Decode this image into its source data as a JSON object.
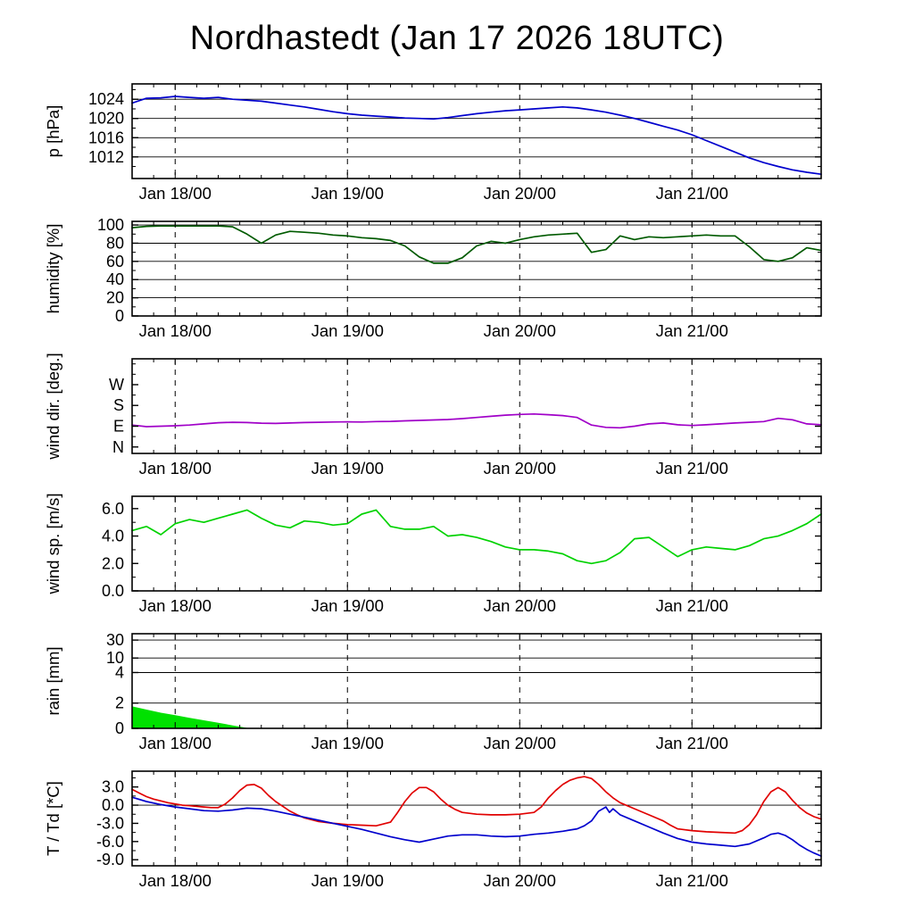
{
  "title": "Nordhastedt (Jan 17 2026 18UTC)",
  "x_axis": {
    "range_hours": [
      0,
      96
    ],
    "start": "Jan 17 2026 18UTC",
    "ticks": [
      {
        "hour": 6,
        "label": "Jan 18/00"
      },
      {
        "hour": 30,
        "label": "Jan 19/00"
      },
      {
        "hour": 54,
        "label": "Jan 20/00"
      },
      {
        "hour": 78,
        "label": "Jan 21/00"
      }
    ]
  },
  "colors": {
    "pressure": "#0000cd",
    "humidity": "#005a00",
    "wind_direction": "#a000c8",
    "wind_speed": "#00d200",
    "rain": "#00e100",
    "temperature": "#e10000",
    "dewpoint": "#0000cd",
    "axis": "#000000",
    "background": "#ffffff"
  },
  "chart_data": [
    {
      "type": "line",
      "name": "pressure",
      "ylabel": "p [hPa]",
      "ylim": [
        1007.5,
        1027.2
      ],
      "yticks": [
        {
          "v": 1012,
          "label": "1012",
          "grid": true
        },
        {
          "v": 1016,
          "label": "1016",
          "grid": true
        },
        {
          "v": 1020,
          "label": "1020",
          "grid": true
        },
        {
          "v": 1024,
          "label": "1024",
          "grid": true
        }
      ],
      "minor_yticks": [
        1010,
        1014,
        1018,
        1022,
        1026
      ],
      "series": [
        {
          "name": "pressure",
          "color": "#0000cd",
          "x": [
            0,
            2,
            4,
            6,
            8,
            10,
            12,
            14,
            16,
            18,
            20,
            22,
            24,
            26,
            28,
            30,
            32,
            34,
            36,
            38,
            40,
            42,
            44,
            46,
            48,
            50,
            52,
            54,
            56,
            58,
            60,
            62,
            64,
            66,
            68,
            70,
            72,
            74,
            76,
            78,
            80,
            82,
            84,
            86,
            88,
            90,
            92,
            94,
            96
          ],
          "y": [
            1023.2,
            1024.2,
            1024.3,
            1024.6,
            1024.4,
            1024.2,
            1024.4,
            1024.0,
            1023.8,
            1023.6,
            1023.2,
            1022.8,
            1022.4,
            1021.9,
            1021.4,
            1021.0,
            1020.7,
            1020.5,
            1020.3,
            1020.1,
            1020.0,
            1019.9,
            1020.2,
            1020.6,
            1021.0,
            1021.3,
            1021.6,
            1021.8,
            1022.0,
            1022.2,
            1022.4,
            1022.2,
            1021.8,
            1021.3,
            1020.7,
            1020.0,
            1019.2,
            1018.4,
            1017.6,
            1016.6,
            1015.4,
            1014.2,
            1013.0,
            1011.8,
            1010.8,
            1010.0,
            1009.3,
            1008.8,
            1008.4
          ]
        }
      ]
    },
    {
      "type": "line",
      "name": "humidity",
      "ylabel": "humidity [%]",
      "ylim": [
        0,
        104
      ],
      "yticks": [
        {
          "v": 0,
          "label": "0",
          "grid": false
        },
        {
          "v": 20,
          "label": "20",
          "grid": true
        },
        {
          "v": 40,
          "label": "40",
          "grid": true
        },
        {
          "v": 60,
          "label": "60",
          "grid": true
        },
        {
          "v": 80,
          "label": "80",
          "grid": true
        },
        {
          "v": 100,
          "label": "100",
          "grid": true
        }
      ],
      "minor_yticks": [
        10,
        30,
        50,
        70,
        90
      ],
      "series": [
        {
          "name": "humidity",
          "color": "#005a00",
          "x": [
            0,
            2,
            4,
            6,
            8,
            10,
            12,
            14,
            16,
            18,
            20,
            22,
            24,
            26,
            28,
            30,
            32,
            34,
            36,
            38,
            40,
            42,
            44,
            46,
            48,
            50,
            52,
            54,
            56,
            58,
            60,
            62,
            64,
            66,
            68,
            70,
            72,
            74,
            76,
            78,
            80,
            82,
            84,
            86,
            88,
            90,
            92,
            94,
            96
          ],
          "y": [
            97,
            98.5,
            99,
            99,
            99,
            99,
            99,
            98,
            90,
            80,
            89,
            93,
            92,
            91,
            89,
            88,
            86,
            85,
            83,
            77,
            65,
            58,
            58,
            64,
            77,
            82,
            80,
            84,
            87,
            89,
            90,
            91,
            70,
            73,
            88,
            84,
            87,
            86,
            87,
            88,
            89,
            88,
            88,
            76,
            62,
            60,
            64,
            75,
            72
          ]
        }
      ]
    },
    {
      "type": "line",
      "name": "wind-direction",
      "ylabel": "wind dir. [deg.]",
      "ylim": [
        -28,
        382
      ],
      "yticks": [
        {
          "v": 0,
          "label": "N",
          "grid": false
        },
        {
          "v": 90,
          "label": "E",
          "grid": false
        },
        {
          "v": 180,
          "label": "S",
          "grid": false
        },
        {
          "v": 270,
          "label": "W",
          "grid": false
        }
      ],
      "minor_yticks": [
        45,
        135,
        225,
        315,
        360
      ],
      "series": [
        {
          "name": "wind-direction",
          "color": "#a000c8",
          "x": [
            0,
            2,
            4,
            6,
            8,
            10,
            12,
            14,
            16,
            18,
            20,
            22,
            24,
            26,
            28,
            30,
            32,
            34,
            36,
            38,
            40,
            42,
            44,
            46,
            48,
            50,
            52,
            54,
            56,
            58,
            60,
            62,
            64,
            66,
            68,
            70,
            72,
            74,
            76,
            78,
            80,
            82,
            84,
            86,
            88,
            90,
            92,
            94,
            96
          ],
          "y": [
            95,
            88,
            90,
            92,
            95,
            100,
            105,
            107,
            106,
            103,
            102,
            104,
            106,
            107,
            108,
            109,
            108,
            110,
            111,
            113,
            115,
            117,
            119,
            123,
            128,
            133,
            138,
            141,
            143,
            140,
            136,
            128,
            95,
            85,
            83,
            90,
            100,
            104,
            96,
            93,
            96,
            100,
            104,
            107,
            110,
            124,
            118,
            100,
            96
          ]
        }
      ]
    },
    {
      "type": "line",
      "name": "wind-speed",
      "ylabel": "wind sp. [m/s]",
      "ylim": [
        0,
        6.9
      ],
      "yticks": [
        {
          "v": 0,
          "label": "0.0",
          "grid": false
        },
        {
          "v": 2,
          "label": "2.0",
          "grid": false
        },
        {
          "v": 4,
          "label": "4.0",
          "grid": false
        },
        {
          "v": 6,
          "label": "6.0",
          "grid": false
        }
      ],
      "minor_yticks": [
        1,
        3,
        5
      ],
      "series": [
        {
          "name": "wind-speed",
          "color": "#00d200",
          "x": [
            0,
            2,
            4,
            6,
            8,
            10,
            12,
            14,
            16,
            18,
            20,
            22,
            24,
            26,
            28,
            30,
            32,
            34,
            36,
            38,
            40,
            42,
            44,
            46,
            48,
            50,
            52,
            54,
            56,
            58,
            60,
            62,
            64,
            66,
            68,
            70,
            72,
            74,
            76,
            78,
            80,
            82,
            84,
            86,
            88,
            90,
            92,
            94,
            96
          ],
          "y": [
            4.4,
            4.7,
            4.1,
            4.9,
            5.2,
            5.0,
            5.3,
            5.6,
            5.9,
            5.3,
            4.8,
            4.6,
            5.1,
            5.0,
            4.8,
            4.9,
            5.6,
            5.9,
            4.7,
            4.5,
            4.5,
            4.7,
            4.0,
            4.1,
            3.9,
            3.6,
            3.2,
            3.0,
            3.0,
            2.9,
            2.7,
            2.2,
            2.0,
            2.2,
            2.8,
            3.8,
            3.9,
            3.2,
            2.5,
            3.0,
            3.2,
            3.1,
            3.0,
            3.3,
            3.8,
            4.0,
            4.4,
            4.9,
            5.6
          ]
        }
      ]
    },
    {
      "type": "area",
      "name": "rain",
      "ylabel": "rain [mm]",
      "ylim": [
        0,
        35
      ],
      "yscale": {
        "values": [
          0,
          2,
          4,
          10,
          30
        ],
        "fractions": [
          0,
          0.267,
          0.59,
          0.743,
          0.933
        ]
      },
      "yticks": [
        {
          "v": 0,
          "label": "0",
          "grid": false
        },
        {
          "v": 2,
          "label": "2",
          "grid": true
        },
        {
          "v": 4,
          "label": "4",
          "grid": true
        },
        {
          "v": 10,
          "label": "10",
          "grid": true
        },
        {
          "v": 30,
          "label": "30",
          "grid": true
        }
      ],
      "minor_yticks": [],
      "series": [
        {
          "name": "rain",
          "color": "#00e100",
          "x": [
            0,
            2,
            4,
            6,
            8,
            10,
            12,
            14,
            16
          ],
          "y": [
            1.7,
            1.45,
            1.2,
            1.0,
            0.8,
            0.6,
            0.4,
            0.2,
            0
          ]
        }
      ]
    },
    {
      "type": "line",
      "name": "temperature-dewpoint",
      "ylabel": "T / Td [*C]",
      "ylim": [
        -10,
        5.6
      ],
      "yticks": [
        {
          "v": 3,
          "label": "3.0",
          "grid": false
        },
        {
          "v": 0,
          "label": "0.0",
          "grid": true
        },
        {
          "v": -3,
          "label": "-3.0",
          "grid": false
        },
        {
          "v": -6,
          "label": "-6.0",
          "grid": false
        },
        {
          "v": -9,
          "label": "-9.0",
          "grid": false
        }
      ],
      "minor_yticks": [
        4.5,
        1.5,
        -1.5,
        -4.5,
        -7.5
      ],
      "series": [
        {
          "name": "T",
          "color": "#e10000",
          "x": [
            0,
            1,
            2,
            3,
            4,
            5,
            6,
            7,
            8,
            9,
            10,
            11,
            12,
            13,
            14,
            15,
            16,
            17,
            18,
            19,
            20,
            21,
            22,
            23,
            24,
            26,
            28,
            30,
            32,
            34,
            36,
            37,
            38,
            39,
            40,
            41,
            42,
            43,
            44,
            45,
            46,
            48,
            50,
            52,
            54,
            56,
            57,
            58,
            59,
            60,
            61,
            62,
            63,
            64,
            65,
            66,
            67,
            68,
            70,
            72,
            74,
            75,
            76,
            78,
            80,
            82,
            84,
            85,
            86,
            87,
            88,
            89,
            90,
            91,
            92,
            93,
            94,
            95,
            96
          ],
          "y": [
            2.6,
            2.0,
            1.4,
            1.0,
            0.7,
            0.4,
            0.2,
            0.0,
            -0.1,
            -0.2,
            -0.3,
            -0.4,
            -0.4,
            0.2,
            1.2,
            2.4,
            3.3,
            3.4,
            2.8,
            1.6,
            0.6,
            -0.2,
            -1.0,
            -1.6,
            -2.1,
            -2.7,
            -3.0,
            -3.2,
            -3.3,
            -3.4,
            -2.8,
            -1.2,
            0.6,
            2.0,
            2.9,
            2.9,
            2.2,
            1.0,
            0.0,
            -0.7,
            -1.2,
            -1.5,
            -1.6,
            -1.6,
            -1.5,
            -1.2,
            -0.3,
            1.2,
            2.4,
            3.4,
            4.1,
            4.5,
            4.7,
            4.4,
            3.4,
            2.2,
            1.2,
            0.4,
            -0.6,
            -1.6,
            -2.6,
            -3.3,
            -3.9,
            -4.2,
            -4.4,
            -4.5,
            -4.6,
            -4.2,
            -3.2,
            -1.6,
            0.6,
            2.2,
            2.9,
            2.2,
            0.8,
            -0.4,
            -1.3,
            -1.9,
            -2.3
          ]
        },
        {
          "name": "Td",
          "color": "#0000cd",
          "x": [
            0,
            2,
            4,
            6,
            8,
            10,
            12,
            14,
            16,
            18,
            20,
            22,
            24,
            26,
            28,
            30,
            32,
            34,
            36,
            38,
            40,
            42,
            44,
            46,
            48,
            50,
            52,
            54,
            56,
            58,
            60,
            62,
            63,
            64,
            65,
            66,
            66.5,
            67,
            68,
            69,
            70,
            72,
            74,
            76,
            78,
            80,
            82,
            84,
            86,
            88,
            89,
            90,
            91,
            92,
            93,
            94,
            95,
            96
          ],
          "y": [
            1.3,
            0.6,
            0.1,
            -0.3,
            -0.6,
            -0.9,
            -1.0,
            -0.8,
            -0.5,
            -0.6,
            -1.0,
            -1.5,
            -2.0,
            -2.5,
            -3.0,
            -3.5,
            -4.0,
            -4.6,
            -5.2,
            -5.7,
            -6.1,
            -5.6,
            -5.1,
            -4.9,
            -4.9,
            -5.1,
            -5.2,
            -5.1,
            -4.8,
            -4.6,
            -4.3,
            -3.9,
            -3.4,
            -2.6,
            -1.0,
            -0.3,
            -1.2,
            -0.6,
            -1.6,
            -2.1,
            -2.6,
            -3.6,
            -4.6,
            -5.5,
            -6.1,
            -6.4,
            -6.6,
            -6.8,
            -6.4,
            -5.4,
            -4.8,
            -4.6,
            -5.0,
            -5.7,
            -6.6,
            -7.3,
            -7.9,
            -8.4
          ]
        }
      ]
    }
  ]
}
